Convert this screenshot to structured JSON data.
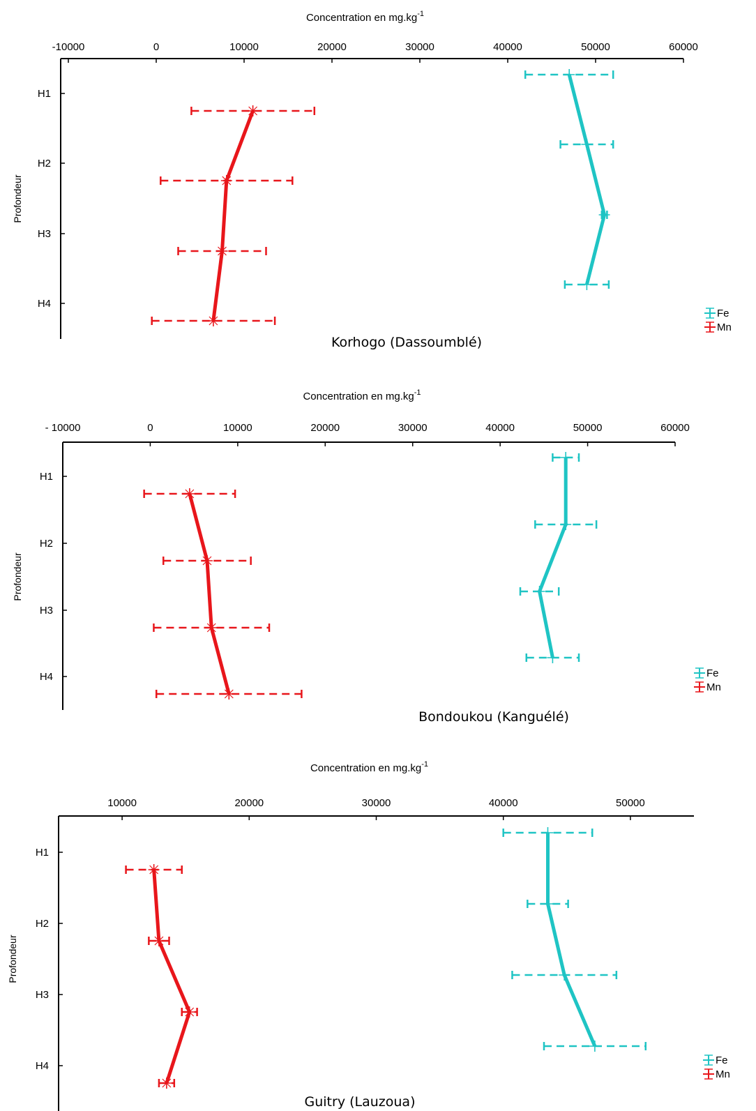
{
  "chart_data": [
    {
      "type": "line",
      "xlabel": "Concentration en mg.kg",
      "xlabel_sup": "-1",
      "ylabel": "Profondeur",
      "subtitle": "Korhogo (Dassoumblé)",
      "xlim": [
        -10000,
        60000
      ],
      "xticks": [
        -10000,
        0,
        10000,
        20000,
        30000,
        40000,
        50000,
        60000
      ],
      "xtick_labels": [
        "-10000",
        "0",
        "10000",
        "20000",
        "30000",
        "40000",
        "50000",
        "60000"
      ],
      "categories": [
        "H1",
        "H2",
        "H3",
        "H4"
      ],
      "legend": {
        "placement": "bottom-right"
      },
      "series": [
        {
          "name": "Fe",
          "color": "#1fc4c4",
          "values": [
            47000,
            49000,
            51000,
            49000
          ],
          "errors": [
            5000,
            3000,
            300,
            2500
          ]
        },
        {
          "name": "Mn",
          "color": "#e8161b",
          "values": [
            11000,
            8000,
            7500,
            6500
          ],
          "errors": [
            7000,
            7500,
            5000,
            7000
          ]
        }
      ]
    },
    {
      "type": "line",
      "xlabel": "Concentration en mg.kg",
      "xlabel_sup": "-1",
      "ylabel": "Profondeur",
      "subtitle": "Bondoukou (Kanguélé)",
      "xlim": [
        -10000,
        60000
      ],
      "xticks": [
        -10000,
        0,
        10000,
        20000,
        30000,
        40000,
        50000,
        60000
      ],
      "xtick_labels": [
        "- 10000",
        "0",
        "10000",
        "20000",
        "30000",
        "40000",
        "50000",
        "60000"
      ],
      "categories": [
        "H1",
        "H2",
        "H3",
        "H4"
      ],
      "legend": {
        "placement": "bottom-right"
      },
      "series": [
        {
          "name": "Fe",
          "color": "#1fc4c4",
          "values": [
            47500,
            47500,
            44500,
            46000
          ],
          "errors": [
            1500,
            3500,
            2200,
            3000
          ]
        },
        {
          "name": "Mn",
          "color": "#e8161b",
          "values": [
            4500,
            6500,
            7000,
            9000
          ],
          "errors": [
            5200,
            5000,
            6600,
            8300
          ]
        }
      ]
    },
    {
      "type": "line",
      "xlabel": "Concentration en mg.kg",
      "xlabel_sup": "-1",
      "ylabel": "Profondeur",
      "subtitle": "Guitry (Lauzoua)",
      "xlim": [
        5000,
        55000
      ],
      "xticks": [
        10000,
        20000,
        30000,
        40000,
        50000
      ],
      "xtick_labels": [
        "10000",
        "20000",
        "30000",
        "40000",
        "50000"
      ],
      "categories": [
        "H1",
        "H2",
        "H3",
        "H4"
      ],
      "legend": {
        "placement": "bottom-right"
      },
      "series": [
        {
          "name": "Fe",
          "color": "#1fc4c4",
          "values": [
            43500,
            43500,
            44800,
            47200
          ],
          "errors": [
            3500,
            1600,
            4100,
            4000
          ]
        },
        {
          "name": "Mn",
          "color": "#e8161b",
          "values": [
            12500,
            12900,
            15300,
            13500
          ],
          "errors": [
            2200,
            800,
            600,
            600
          ]
        }
      ]
    }
  ]
}
